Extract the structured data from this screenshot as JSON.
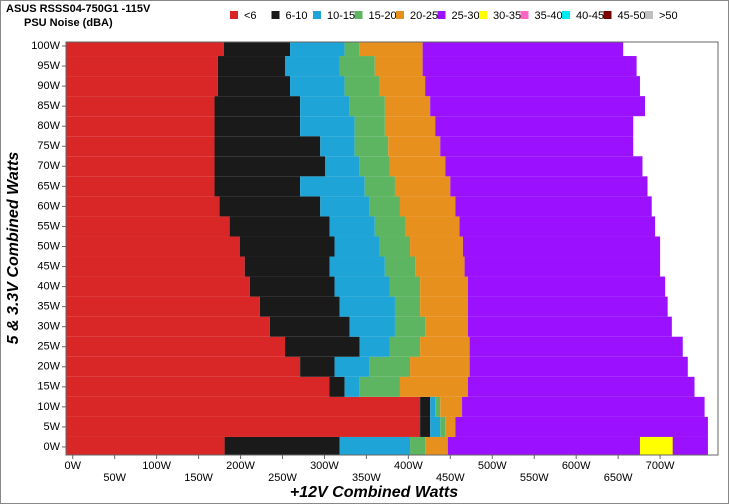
{
  "chart_data": {
    "type": "heatmap",
    "title": "ASUS RSSS04-750G1 -115V",
    "subtitle": "PSU Noise (dBA)",
    "x_label": "+12V Combined Watts",
    "y_label": "5 & 3.3V Combined Watts",
    "xlim": [
      -8,
      769
    ],
    "ylim": [
      -2,
      101
    ],
    "xticks": [
      {
        "value": 0,
        "label": "0W"
      },
      {
        "value": 50,
        "label": "50W"
      },
      {
        "value": 100,
        "label": "100W"
      },
      {
        "value": 150,
        "label": "150W"
      },
      {
        "value": 200,
        "label": "200W"
      },
      {
        "value": 250,
        "label": "250W"
      },
      {
        "value": 300,
        "label": "300W"
      },
      {
        "value": 350,
        "label": "350W"
      },
      {
        "value": 400,
        "label": "400W"
      },
      {
        "value": 450,
        "label": "450W"
      },
      {
        "value": 500,
        "label": "500W"
      },
      {
        "value": 550,
        "label": "550W"
      },
      {
        "value": 600,
        "label": "600W"
      },
      {
        "value": 650,
        "label": "650W"
      },
      {
        "value": 700,
        "label": "700W"
      }
    ],
    "yticks": [
      {
        "value": 0,
        "label": "0W"
      },
      {
        "value": 5,
        "label": "5W"
      },
      {
        "value": 10,
        "label": "10W"
      },
      {
        "value": 15,
        "label": "15W"
      },
      {
        "value": 20,
        "label": "20W"
      },
      {
        "value": 25,
        "label": "25W"
      },
      {
        "value": 30,
        "label": "30W"
      },
      {
        "value": 35,
        "label": "35W"
      },
      {
        "value": 40,
        "label": "40W"
      },
      {
        "value": 45,
        "label": "45W"
      },
      {
        "value": 50,
        "label": "50W"
      },
      {
        "value": 55,
        "label": "55W"
      },
      {
        "value": 60,
        "label": "60W"
      },
      {
        "value": 65,
        "label": "65W"
      },
      {
        "value": 70,
        "label": "70W"
      },
      {
        "value": 75,
        "label": "75W"
      },
      {
        "value": 80,
        "label": "80W"
      },
      {
        "value": 85,
        "label": "85W"
      },
      {
        "value": 90,
        "label": "90W"
      },
      {
        "value": 95,
        "label": "95W"
      },
      {
        "value": 100,
        "label": "100W"
      }
    ],
    "y": [
      0,
      5,
      10,
      15,
      20,
      25,
      30,
      35,
      40,
      45,
      50,
      55,
      60,
      65,
      70,
      75,
      80,
      85,
      90,
      95,
      100
    ],
    "series": [
      {
        "name": "<6",
        "color": "#d92727",
        "values": [
          181,
          414,
          414,
          306,
          271,
          253,
          235,
          223,
          211,
          205,
          199,
          187,
          175,
          169,
          169,
          169,
          169,
          169,
          173,
          173,
          180
        ]
      },
      {
        "name": "6-10",
        "color": "#1a1a1a",
        "values": [
          318,
          426,
          426,
          324,
          312,
          342,
          330,
          318,
          312,
          306,
          312,
          306,
          295,
          271,
          301,
          295,
          271,
          271,
          259,
          253,
          259
        ]
      },
      {
        "name": "10-15",
        "color": "#1ea4d6",
        "values": [
          402,
          438,
          432,
          342,
          354,
          378,
          384,
          384,
          378,
          372,
          366,
          360,
          354,
          348,
          342,
          336,
          336,
          330,
          324,
          318,
          324
        ]
      },
      {
        "name": "15-20",
        "color": "#5db562",
        "values": [
          420,
          444,
          438,
          390,
          402,
          414,
          420,
          414,
          414,
          408,
          402,
          396,
          390,
          384,
          378,
          376,
          372,
          372,
          366,
          360,
          342
        ]
      },
      {
        "name": "20-25",
        "color": "#e8901e",
        "values": [
          447,
          456,
          464,
          471,
          473,
          473,
          471,
          471,
          471,
          467,
          465,
          461,
          456,
          450,
          444,
          438,
          432,
          426,
          420,
          417,
          417
        ]
      },
      {
        "name": "25-30",
        "color": "#9a10ff",
        "values": [
          757,
          757,
          753,
          741,
          733,
          727,
          714,
          709,
          706,
          700,
          700,
          694,
          690,
          685,
          679,
          668,
          668,
          682,
          676,
          672,
          656
        ]
      },
      {
        "name": "30-35",
        "color": "#ffff00"
      },
      {
        "name": "35-40",
        "color": "#ff66c4"
      },
      {
        "name": "40-45",
        "color": "#00e8f0"
      },
      {
        "name": "45-50",
        "color": "#7a0000"
      },
      {
        "name": ">50",
        "color": "#c0c0c0"
      }
    ],
    "spots": [
      {
        "series": 6,
        "y": 0,
        "x": [
          676,
          715
        ]
      }
    ]
  }
}
